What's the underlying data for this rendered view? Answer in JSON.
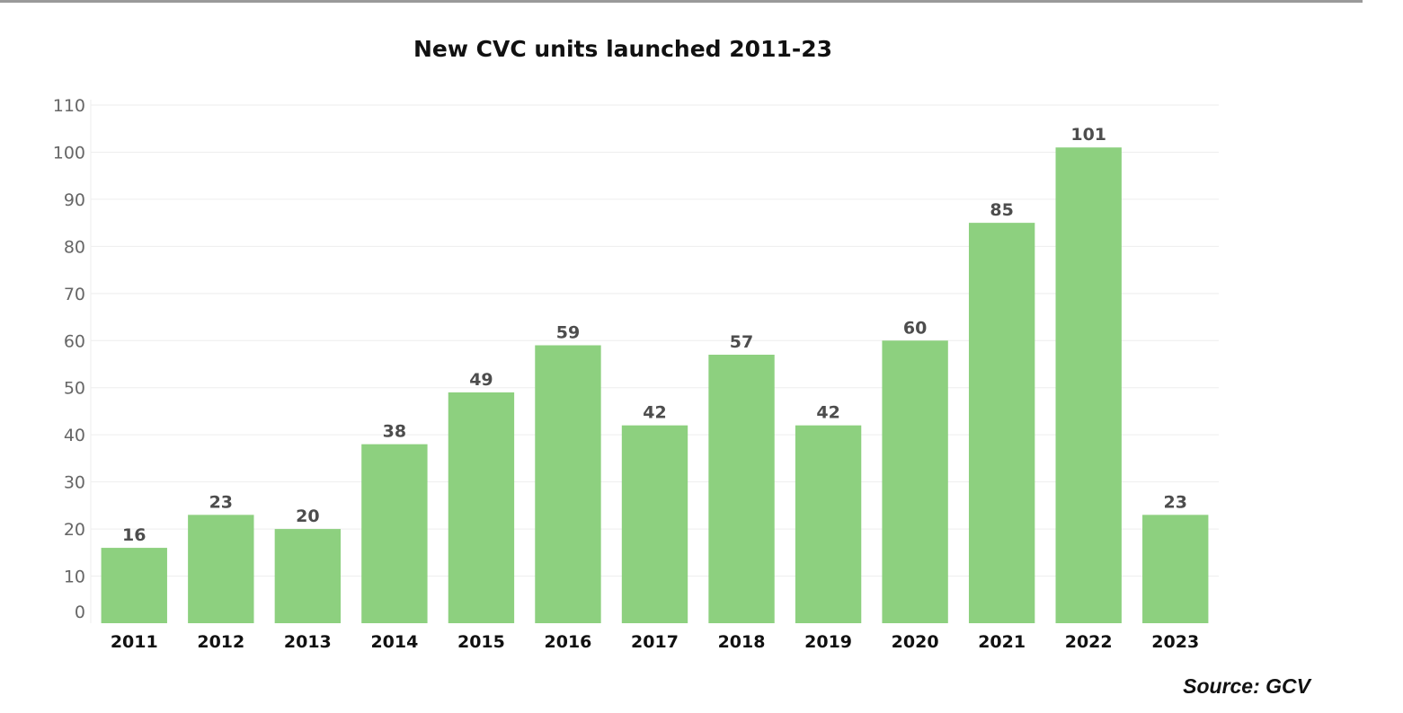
{
  "chart_data": {
    "type": "bar",
    "title": "New CVC units launched 2011-23",
    "xlabel": "",
    "ylabel": "",
    "categories": [
      "2011",
      "2012",
      "2013",
      "2014",
      "2015",
      "2016",
      "2017",
      "2018",
      "2019",
      "2020",
      "2021",
      "2022",
      "2023"
    ],
    "values": [
      16,
      23,
      20,
      38,
      49,
      59,
      42,
      57,
      42,
      60,
      85,
      101,
      23
    ],
    "ylim": [
      0,
      110
    ],
    "yticks": [
      "0",
      "10",
      "20",
      "30",
      "40",
      "50",
      "60",
      "70",
      "80",
      "90",
      "100",
      "110"
    ],
    "grid": true,
    "legend": "none",
    "colors": {
      "bar": "#8dd07f",
      "data_label": "#4d4d4d",
      "y_tick": "#666666",
      "x_tick": "#111111",
      "grid": "#eeeeee"
    }
  },
  "source": "Source: GCV"
}
